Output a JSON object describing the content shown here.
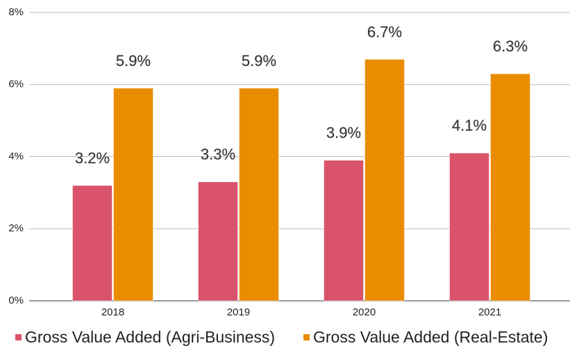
{
  "chart_data": {
    "type": "bar",
    "categories": [
      "2018",
      "2019",
      "2020",
      "2021"
    ],
    "series": [
      {
        "name": "Gross Value Added (Agri-Business)",
        "color": "#d9536b",
        "values": [
          3.2,
          3.3,
          3.9,
          4.1
        ],
        "value_labels": [
          "3.2%",
          "3.3%",
          "3.9%",
          "4.1%"
        ]
      },
      {
        "name": "Gross Value Added (Real-Estate)",
        "color": "#ea8c00",
        "values": [
          5.9,
          5.9,
          6.7,
          6.3
        ],
        "value_labels": [
          "5.9%",
          "5.9%",
          "6.7%",
          "6.3%"
        ]
      }
    ],
    "ylim": [
      0,
      8
    ],
    "yticks": [
      {
        "value": 0,
        "label": "0%"
      },
      {
        "value": 2,
        "label": "2%"
      },
      {
        "value": 4,
        "label": "4%"
      },
      {
        "value": 6,
        "label": "6%"
      },
      {
        "value": 8,
        "label": "8%"
      }
    ],
    "grid": true,
    "legend": "bottom"
  }
}
